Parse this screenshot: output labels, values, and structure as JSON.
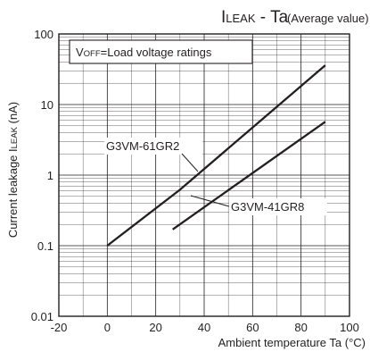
{
  "chart_data": {
    "type": "line",
    "title_main": "I",
    "title_main_sub": "LEAK",
    "title_rest": " - Ta",
    "subtitle": "(Average value)",
    "xlabel": "Ambient temperature Ta (°C)",
    "ylabel_prefix": "Current leakage I",
    "ylabel_sub": "LEAK",
    "ylabel_suffix": " (nA)",
    "xlim": [
      -20,
      100
    ],
    "ylim": [
      0.01,
      100
    ],
    "y_scale": "log",
    "grid": true,
    "x_ticks": [
      -20,
      0,
      20,
      40,
      60,
      80,
      100
    ],
    "x_tick_labels": [
      "-20",
      "0",
      "20",
      "40",
      "60",
      "80",
      "100"
    ],
    "y_ticks": [
      0.01,
      0.1,
      1,
      10,
      100
    ],
    "y_tick_labels": [
      "0.01",
      "0.1",
      "1",
      "10",
      "100"
    ],
    "condition_note": {
      "prefix": "V",
      "sub": "OFF",
      "rest": "=Load voltage ratings"
    },
    "series": [
      {
        "name": "G3VM-61GR2",
        "x": [
          0,
          30,
          90
        ],
        "y": [
          0.1,
          0.62,
          36
        ]
      },
      {
        "name": "G3VM-41GR8",
        "x": [
          27,
          90
        ],
        "y": [
          0.17,
          5.7
        ]
      }
    ]
  }
}
